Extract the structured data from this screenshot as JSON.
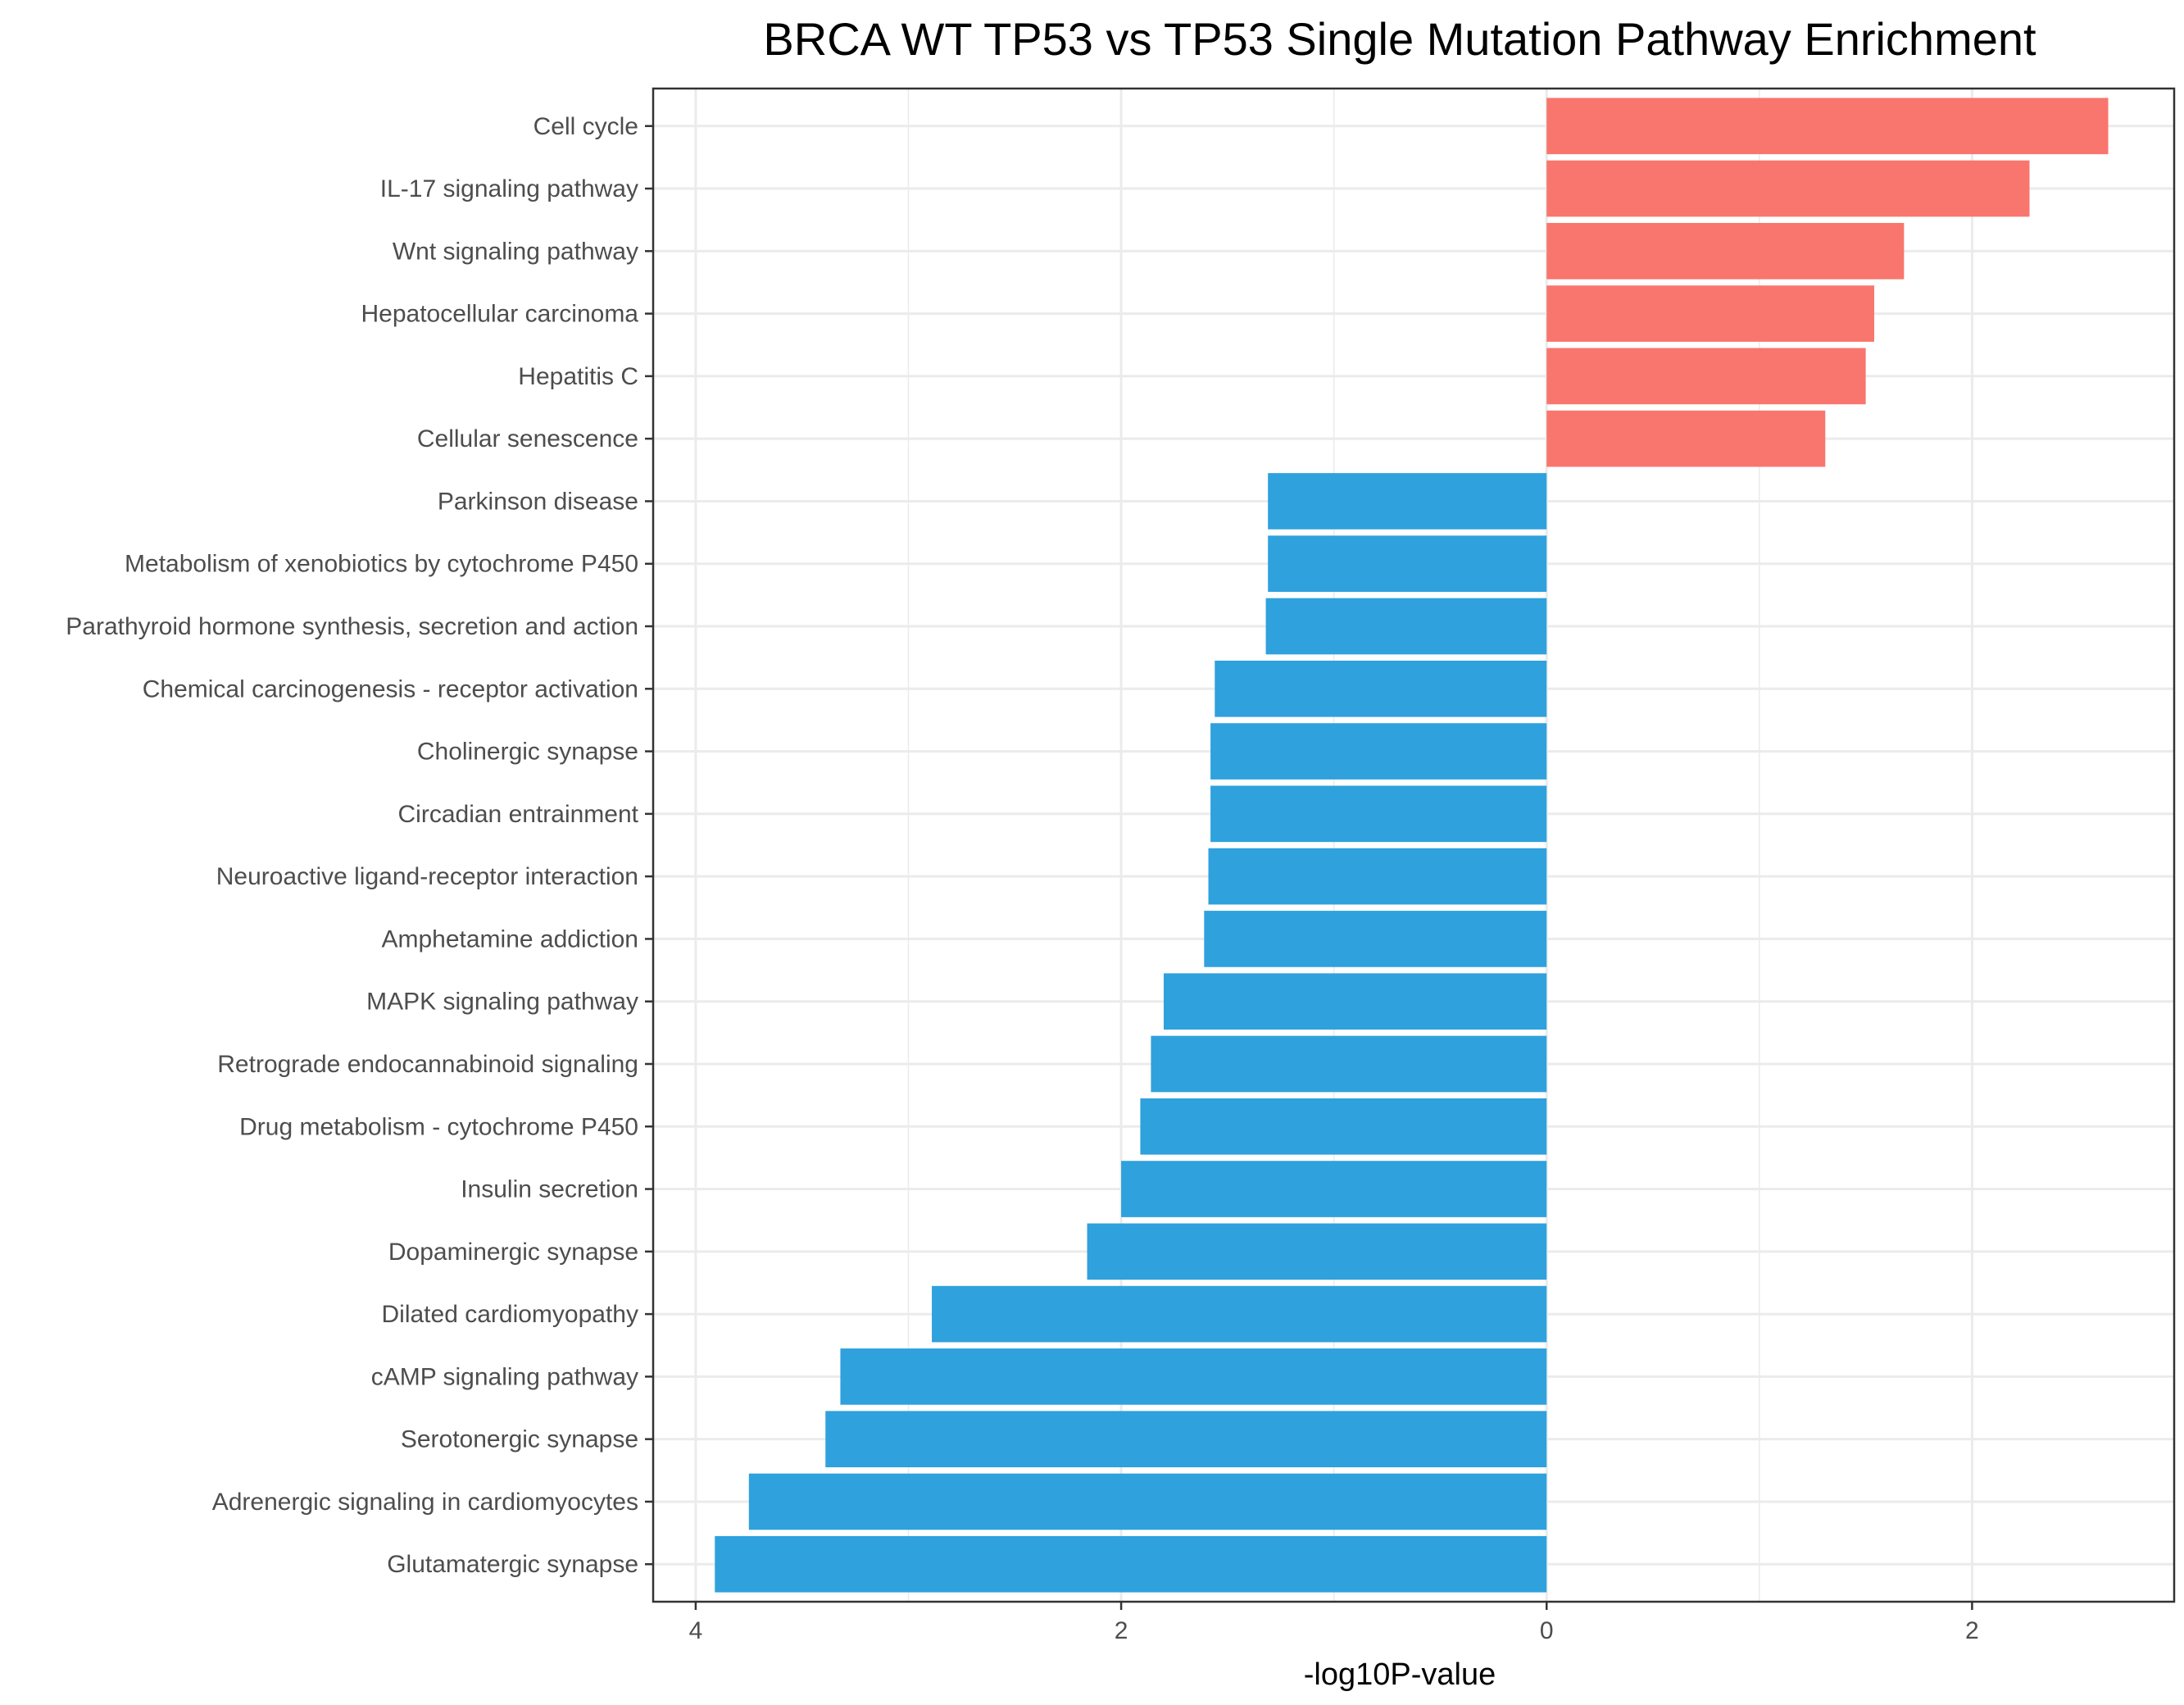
{
  "chart_data": {
    "type": "bar",
    "orientation": "horizontal",
    "title": "BRCA WT TP53 vs TP53 Single Mutation Pathway Enrichment",
    "xlabel": "-log10P-value",
    "ylabel": "",
    "xlim": [
      -4.2,
      2.95
    ],
    "x_ticks": [
      {
        "value": -4,
        "label": "4"
      },
      {
        "value": -2,
        "label": "2"
      },
      {
        "value": 0,
        "label": "0"
      },
      {
        "value": 2,
        "label": "2"
      }
    ],
    "grid": true,
    "legend": "none",
    "colors": {
      "up": "#F8766D",
      "down": "#2FA1DD"
    },
    "categories": [
      "Cell cycle",
      "IL-17 signaling pathway",
      "Wnt signaling pathway",
      "Hepatocellular carcinoma",
      "Hepatitis C",
      "Cellular senescence",
      "Parkinson disease",
      "Metabolism of xenobiotics by cytochrome P450",
      "Parathyroid hormone synthesis, secretion and action",
      "Chemical carcinogenesis - receptor activation",
      "Cholinergic synapse",
      "Circadian entrainment",
      "Neuroactive ligand-receptor interaction",
      "Amphetamine addiction",
      "MAPK signaling pathway",
      "Retrograde endocannabinoid signaling",
      "Drug metabolism - cytochrome P450",
      "Insulin secretion",
      "Dopaminergic synapse",
      "Dilated cardiomyopathy",
      "cAMP signaling pathway",
      "Serotonergic synapse",
      "Adrenergic signaling in cardiomyocytes",
      "Glutamatergic synapse"
    ],
    "values": [
      2.64,
      2.27,
      1.68,
      1.54,
      1.5,
      1.31,
      -1.31,
      -1.31,
      -1.32,
      -1.56,
      -1.58,
      -1.58,
      -1.59,
      -1.61,
      -1.8,
      -1.86,
      -1.91,
      -2.0,
      -2.16,
      -2.89,
      -3.32,
      -3.39,
      -3.75,
      -3.91
    ]
  }
}
